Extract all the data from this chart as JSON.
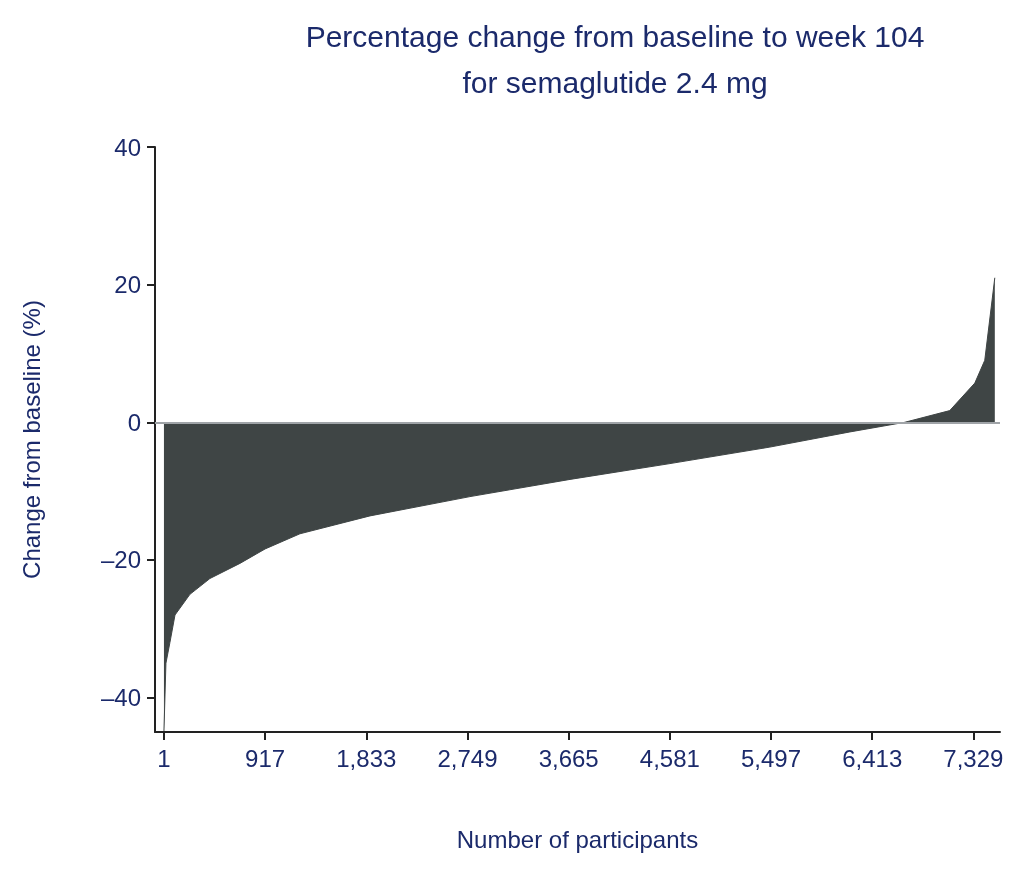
{
  "chart_data": {
    "type": "area",
    "title": "Percentage change from baseline to week 104\nfor semaglutide 2.4 mg",
    "xlabel": "Number of participants",
    "ylabel": "Change from baseline (%)",
    "x": [
      1,
      19,
      55,
      101,
      236,
      417,
      689,
      917,
      1232,
      1866,
      2771,
      3677,
      4582,
      5487,
      6211,
      6708,
      7115,
      7342,
      7432,
      7523
    ],
    "values": [
      -44.9,
      -35,
      -32,
      -28,
      -25,
      -22.7,
      -20.5,
      -18.4,
      -16.2,
      -13.6,
      -10.8,
      -8.3,
      -6,
      -3.6,
      -1.4,
      0,
      1.7,
      5.7,
      9,
      21
    ],
    "color": "#3f4545",
    "xlim": [
      -80,
      7570
    ],
    "xticks": [
      1,
      917,
      {
        "value": 1833,
        "label": "1,833"
      },
      {
        "value": 2749,
        "label": "2,749"
      },
      {
        "value": 3665,
        "label": "3,665"
      },
      {
        "value": 4581,
        "label": "4,581"
      },
      {
        "value": 5497,
        "label": "5,497"
      },
      {
        "value": 6413,
        "label": "6,413"
      },
      {
        "value": 7329,
        "label": "7,329"
      }
    ],
    "ylim": [
      -45,
      40
    ],
    "yticks": [
      {
        "value": -40,
        "label": "–40"
      },
      {
        "value": -20,
        "label": "–20"
      },
      0,
      20,
      40
    ],
    "ref_lines": [
      {
        "axis": "y",
        "value": 0,
        "color": "#a0a4a8"
      }
    ],
    "grid": false,
    "marker": "none"
  }
}
